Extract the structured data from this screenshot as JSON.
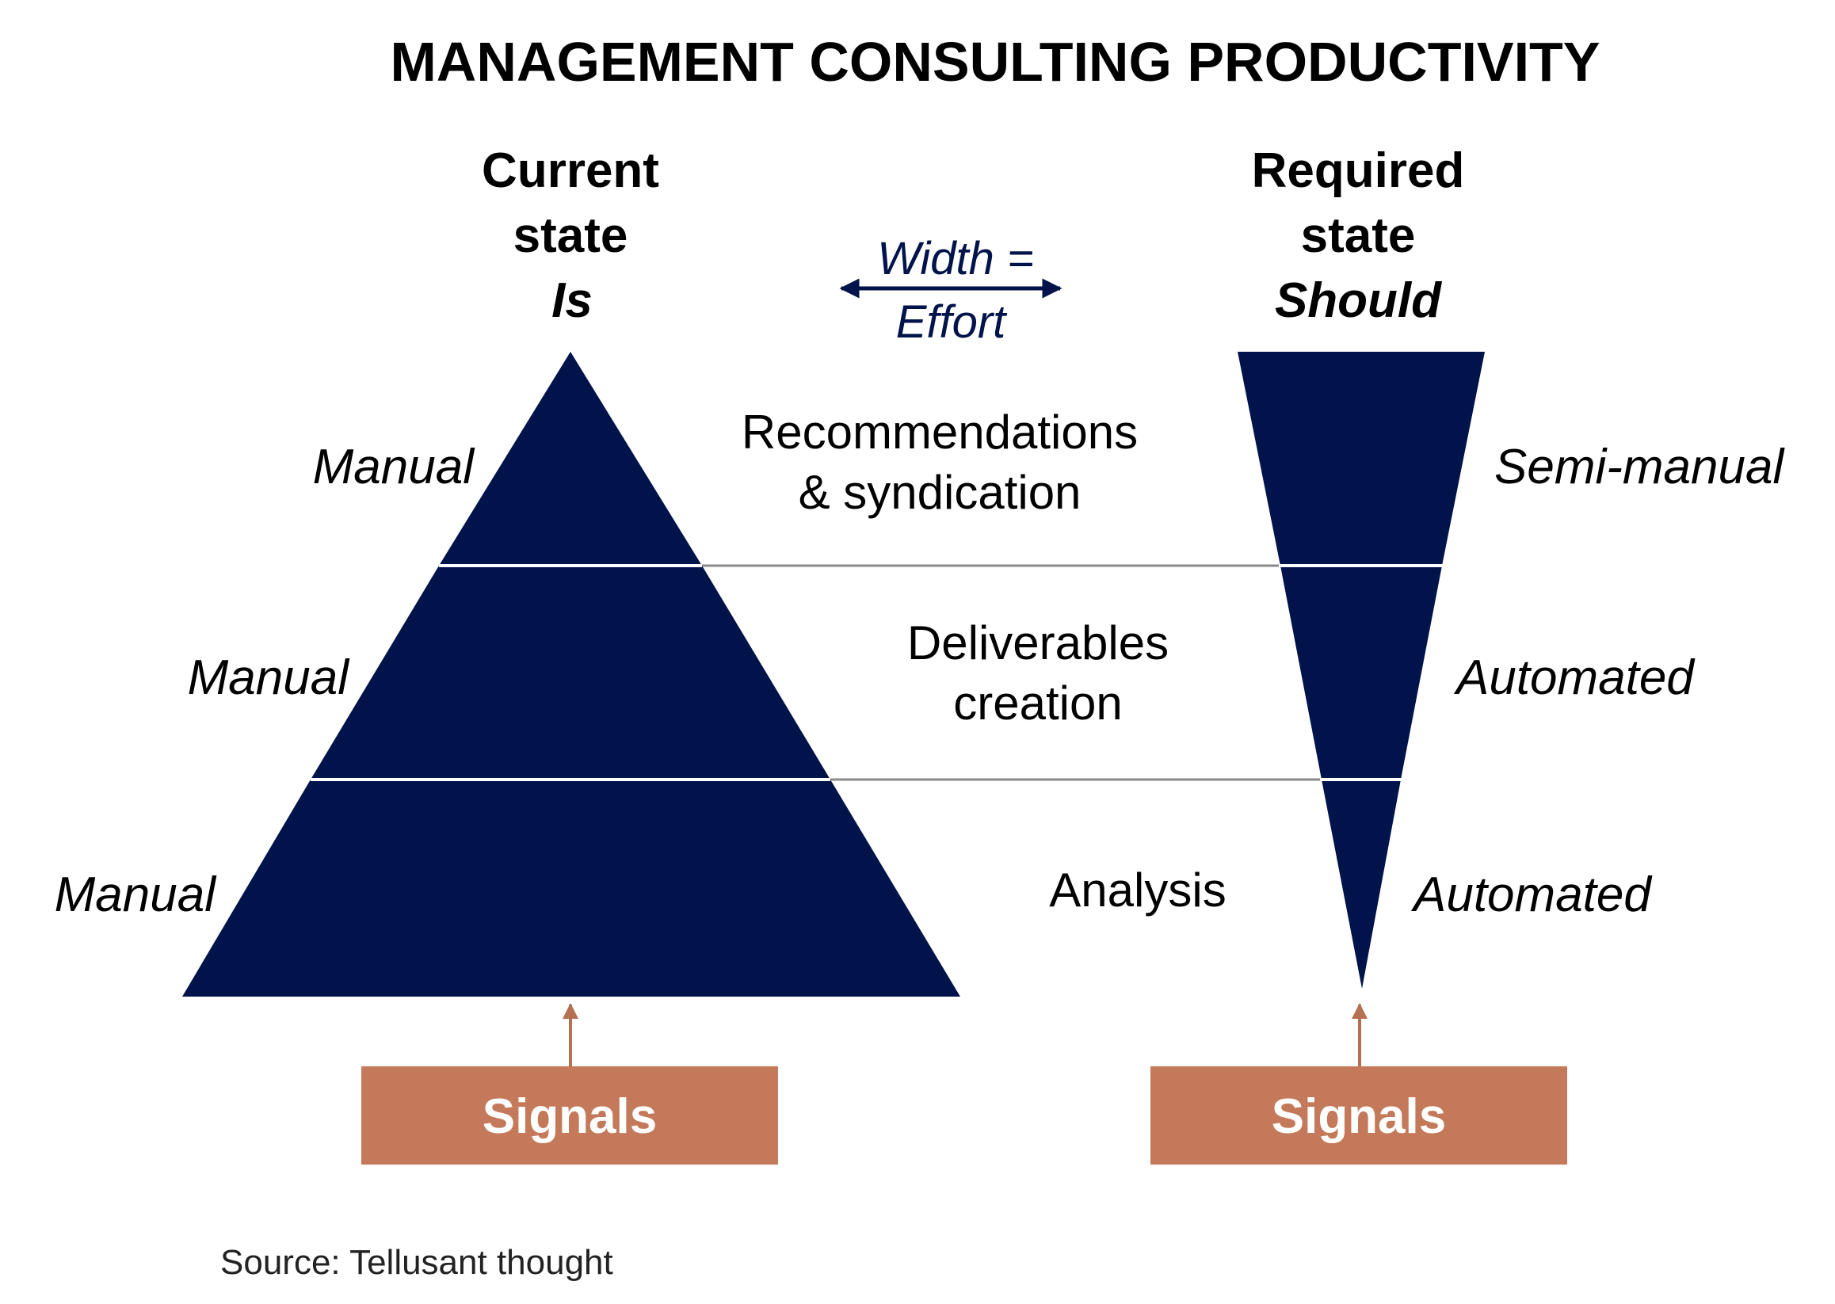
{
  "title": "MANAGEMENT CONSULTING PRODUCTIVITY",
  "current": {
    "heading_line1": "Current",
    "heading_line2": "state",
    "heading_line3": "Is",
    "levels": [
      "Manual",
      "Manual",
      "Manual"
    ],
    "signals_label": "Signals"
  },
  "required": {
    "heading_line1": "Required",
    "heading_line2": "state",
    "heading_line3": "Should",
    "levels": [
      "Semi-manual",
      "Automated",
      "Automated"
    ],
    "signals_label": "Signals"
  },
  "legend": {
    "line1": "Width =",
    "line2": "Effort"
  },
  "layers": [
    {
      "line1": "Recommendations",
      "line2": "& syndication"
    },
    {
      "line1": "Deliverables",
      "line2": "creation"
    },
    {
      "line1": "Analysis"
    }
  ],
  "source": "Source: Tellusant thought",
  "colors": {
    "navy": "#00134a",
    "signals_box": "#c47a5a",
    "arrow": "#b5704f",
    "divider_gray": "#8a8a8a"
  }
}
